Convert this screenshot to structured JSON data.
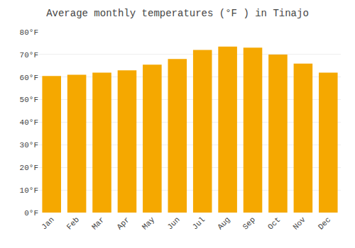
{
  "chart_data": {
    "type": "bar",
    "title": "Average monthly temperatures (°F ) in Tinajo",
    "categories": [
      "Jan",
      "Feb",
      "Mar",
      "Apr",
      "May",
      "Jun",
      "Jul",
      "Aug",
      "Sep",
      "Oct",
      "Nov",
      "Dec"
    ],
    "values": [
      60.5,
      61.0,
      62.0,
      63.0,
      65.5,
      68.0,
      72.0,
      73.5,
      73.0,
      70.0,
      66.0,
      62.0
    ],
    "color": "#F5A800",
    "ylim": [
      0,
      80
    ],
    "yticks": [
      {
        "value": 0,
        "label": "0°F"
      },
      {
        "value": 10,
        "label": "10°F"
      },
      {
        "value": 20,
        "label": "20°F"
      },
      {
        "value": 30,
        "label": "30°F"
      },
      {
        "value": 40,
        "label": "40°F"
      },
      {
        "value": 50,
        "label": "50°F"
      },
      {
        "value": 60,
        "label": "60°F"
      },
      {
        "value": 70,
        "label": "70°F"
      },
      {
        "value": 80,
        "label": "80°F"
      }
    ],
    "grid": true
  }
}
